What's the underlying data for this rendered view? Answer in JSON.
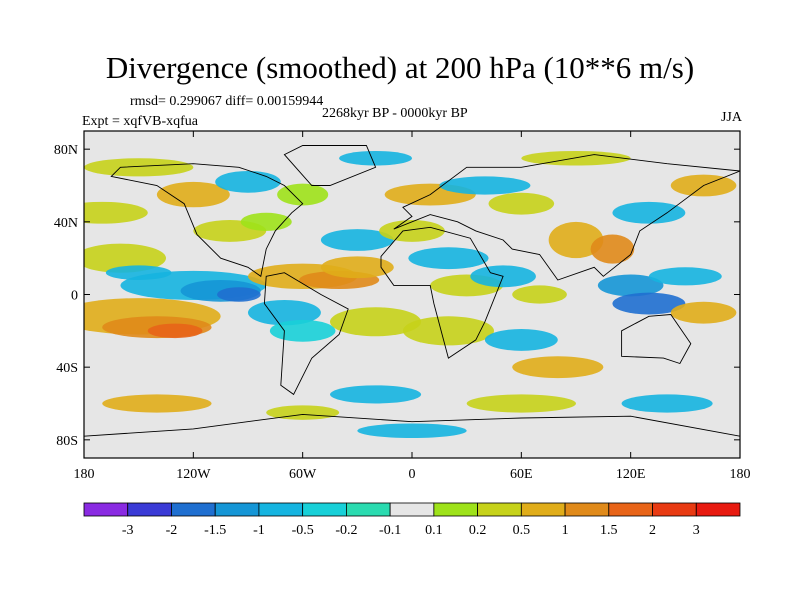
{
  "chart_data": {
    "type": "heatmap",
    "title": "Divergence (smoothed) at 200 hPa (10**6 m/s)",
    "rmsd_text": "rmsd= 0.299067  diff= 0.00159944",
    "experiment_text": "Expt = xqfVB-xqfua",
    "period_text": "2268kyr BP - 0000kyr BP",
    "season": "JJA",
    "x_ticks": [
      "180",
      "120W",
      "60W",
      "0",
      "60E",
      "120E",
      "180"
    ],
    "y_ticks": [
      "80N",
      "40N",
      "0",
      "40S",
      "80S"
    ],
    "lon_range": [
      -180,
      180
    ],
    "lat_range": [
      -90,
      90
    ],
    "colorbar": {
      "labels": [
        "-3",
        "-2",
        "-1.5",
        "-1",
        "-0.5",
        "-0.2",
        "-0.1",
        "0.1",
        "0.2",
        "0.5",
        "1",
        "1.5",
        "2",
        "3"
      ],
      "colors": [
        "#8a2be2",
        "#3b3bd6",
        "#1f6fd0",
        "#1596d6",
        "#15b4e0",
        "#18d0d8",
        "#2adbb0",
        "#e6e6e6",
        "#9ee21a",
        "#c6d21a",
        "#e0ad1a",
        "#e08a1a",
        "#e86418",
        "#e83a12",
        "#e81a10"
      ]
    },
    "field_notes": "Smoothed 200 hPa divergence difference; mostly near zero (grey) with alternating positive (yellow-orange) and negative (cyan-blue) bands, strongest negative over tropical eastern Pacific and Maritime Continent, positive band over subtropical North Atlantic / Africa."
  }
}
